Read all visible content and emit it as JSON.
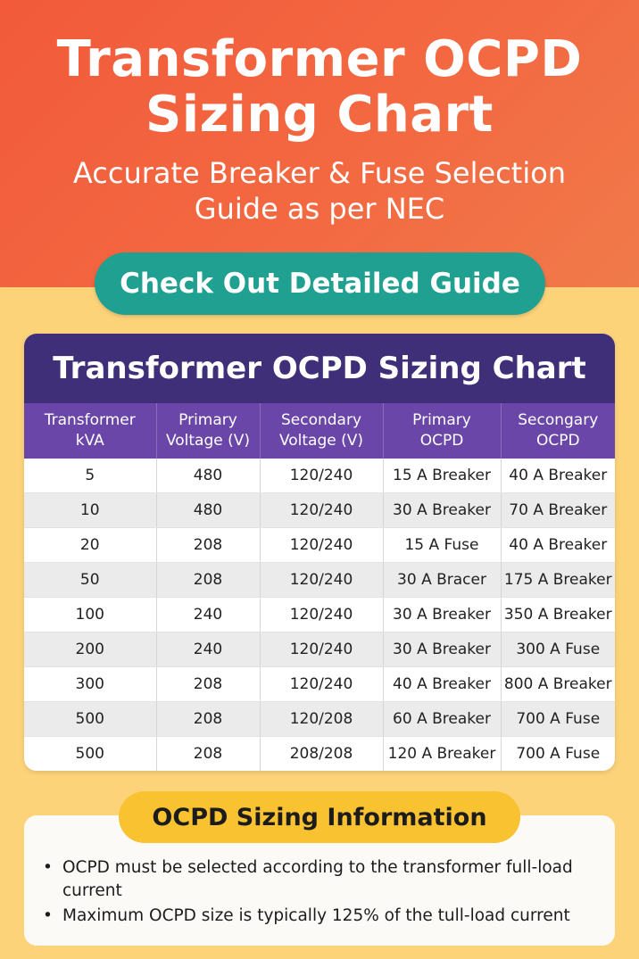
{
  "header": {
    "title_line1": "Transformer OCPD",
    "title_line2": "Sizing Chart",
    "subtitle_line1": "Accurate Breaker & Fuse Selection",
    "subtitle_line2": "Guide as per NEC"
  },
  "cta_label": "Check Out Detailed Guide",
  "table": {
    "title": "Transformer OCPD Sizing Chart",
    "headers": [
      [
        "Transformer",
        "kVA"
      ],
      [
        "Primary",
        "Voltage (V)"
      ],
      [
        "Secondary",
        "Voltage (V)"
      ],
      [
        "Primary",
        "OCPD"
      ],
      [
        "Secongary",
        "OCPD"
      ]
    ],
    "rows": [
      [
        "5",
        "480",
        "120/240",
        "15 A Breaker",
        "40 A Breaker"
      ],
      [
        "10",
        "480",
        "120/240",
        "30 A Breaker",
        "70 A Breaker"
      ],
      [
        "20",
        "208",
        "120/240",
        "15 A Fuse",
        "40 A Breaker"
      ],
      [
        "50",
        "208",
        "120/240",
        "30 A Bracer",
        "175 A Breaker"
      ],
      [
        "100",
        "240",
        "120/240",
        "30 A Breaker",
        "350 A Breaker"
      ],
      [
        "200",
        "240",
        "120/240",
        "30 A Breaker",
        "300 A Fuse"
      ],
      [
        "300",
        "208",
        "120/240",
        "40 A Breaker",
        "800 A Breaker"
      ],
      [
        "500",
        "208",
        "120/208",
        "60 A Breaker",
        "700 A Fuse"
      ],
      [
        "500",
        "208",
        "208/208",
        "120 A Breaker",
        "700 A Fuse"
      ]
    ]
  },
  "info": {
    "title": "OCPD Sizing Information",
    "bullets": [
      "OCPD must be selected according to the transformer full-load current",
      "Maximum OCPD size is typically 125% of the tull-load current"
    ]
  },
  "colors": {
    "hero": "#f25a3a",
    "cta": "#20a090",
    "table_title": "#3f2f78",
    "table_header": "#6a46a8",
    "info_pill": "#f9c231",
    "page_background": "#fdd37a"
  }
}
